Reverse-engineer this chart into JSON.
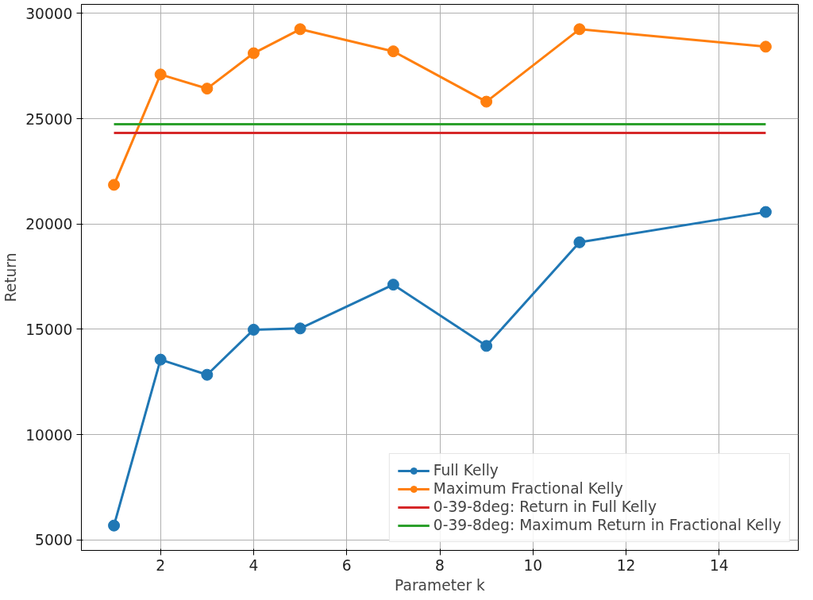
{
  "chart_data": {
    "type": "line",
    "xlabel": "Parameter k",
    "ylabel": "Return",
    "x": [
      1,
      2,
      3,
      4,
      5,
      7,
      9,
      11,
      15
    ],
    "series": [
      {
        "name": "Full Kelly",
        "color": "#1f77b4",
        "values": [
          5680,
          13560,
          12840,
          14980,
          15040,
          17120,
          14210,
          19130,
          20570
        ]
      },
      {
        "name": "Maximum Fractional Kelly",
        "color": "#ff7f0e",
        "values": [
          21860,
          27100,
          26430,
          28110,
          29250,
          28200,
          25810,
          29250,
          28420
        ]
      },
      {
        "name": "0-39-8deg: Return in Full Kelly",
        "color": "#d62728",
        "marker": "none",
        "values": [
          24320,
          24320,
          24320,
          24320,
          24320,
          24320,
          24320,
          24320,
          24320
        ]
      },
      {
        "name": "0-39-8deg: Maximum Return in Fractional Kelly",
        "color": "#2ca02c",
        "marker": "none",
        "values": [
          24740,
          24740,
          24740,
          24740,
          24740,
          24740,
          24740,
          24740,
          24740
        ]
      }
    ],
    "xlim": [
      0.3,
      15.7
    ],
    "ylim": [
      4500,
      30430
    ],
    "xticks": [
      2,
      4,
      6,
      8,
      10,
      12,
      14
    ],
    "yticks": [
      5000,
      10000,
      15000,
      20000,
      25000,
      30000
    ],
    "grid": true,
    "legend": "bottom right",
    "marker": "circle",
    "line_style": "solid"
  }
}
